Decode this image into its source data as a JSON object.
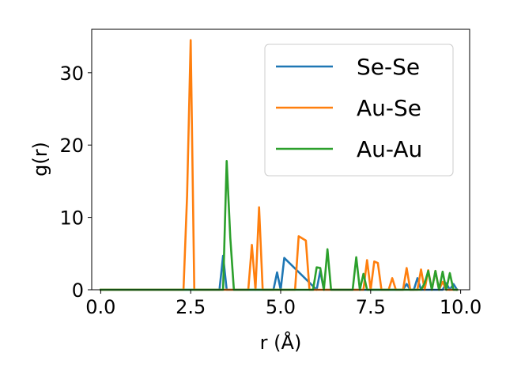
{
  "chart_data": {
    "type": "line",
    "xlabel": "r (Å)",
    "ylabel": "g(r)",
    "xlim": [
      -0.25,
      10.25
    ],
    "ylim": [
      0,
      36
    ],
    "xticks": [
      "0.0",
      "2.5",
      "5.0",
      "7.5",
      "10.0"
    ],
    "yticks": [
      "0",
      "10",
      "20",
      "30"
    ],
    "grid": false,
    "legend_position": "top-right",
    "series": [
      {
        "name": "Se-Se",
        "color": "#1f77b4",
        "x": [
          0.0,
          3.3,
          3.4,
          3.5,
          3.6,
          4.8,
          4.9,
          5.0,
          5.1,
          6.0,
          6.1,
          6.2,
          8.4,
          8.5,
          8.6,
          8.7,
          8.8,
          8.9,
          9.5,
          9.6,
          9.7,
          9.8,
          9.9
        ],
        "y": [
          0,
          0,
          4.7,
          0,
          0,
          0,
          2.4,
          0,
          4.4,
          0,
          2.6,
          0,
          0,
          0.8,
          0,
          0,
          1.6,
          0,
          0,
          0.9,
          0,
          0.8,
          0
        ]
      },
      {
        "name": "Au-Se",
        "color": "#ff7f0e",
        "x": [
          0.0,
          2.3,
          2.4,
          2.5,
          2.6,
          4.1,
          4.2,
          4.3,
          4.4,
          4.5,
          5.4,
          5.5,
          5.6,
          5.7,
          5.8,
          7.3,
          7.4,
          7.5,
          7.6,
          7.7,
          7.8,
          8.0,
          8.1,
          8.2,
          8.4,
          8.5,
          8.6,
          8.8,
          8.9,
          9.0,
          9.1,
          9.2,
          9.3,
          9.4,
          9.5,
          9.6,
          9.7,
          9.8,
          9.9
        ],
        "y": [
          0,
          0,
          13,
          34.5,
          0,
          0,
          6.2,
          0,
          11.4,
          0,
          0,
          7.4,
          7.1,
          6.8,
          0,
          0,
          4.1,
          0,
          3.9,
          3.7,
          0,
          0,
          1.6,
          0,
          0,
          3.0,
          0,
          0,
          2.8,
          0,
          2.7,
          0,
          2.6,
          0,
          1.1,
          0,
          0,
          0,
          0
        ]
      },
      {
        "name": "Au-Au",
        "color": "#2ca02c",
        "x": [
          0.0,
          3.4,
          3.5,
          3.6,
          3.7,
          5.9,
          6.0,
          6.1,
          6.2,
          6.3,
          6.4,
          7.0,
          7.1,
          7.2,
          7.3,
          7.4,
          7.5,
          8.9,
          9.0,
          9.1,
          9.2,
          9.3,
          9.4,
          9.5,
          9.6,
          9.7,
          9.8,
          9.9
        ],
        "y": [
          0,
          0,
          17.8,
          7.2,
          0,
          0,
          3.1,
          3.0,
          0,
          5.6,
          0,
          0,
          4.5,
          0,
          2.2,
          0,
          0,
          0,
          0.9,
          2.6,
          0,
          2.6,
          0,
          2.5,
          0,
          2.3,
          0,
          0
        ]
      }
    ]
  }
}
